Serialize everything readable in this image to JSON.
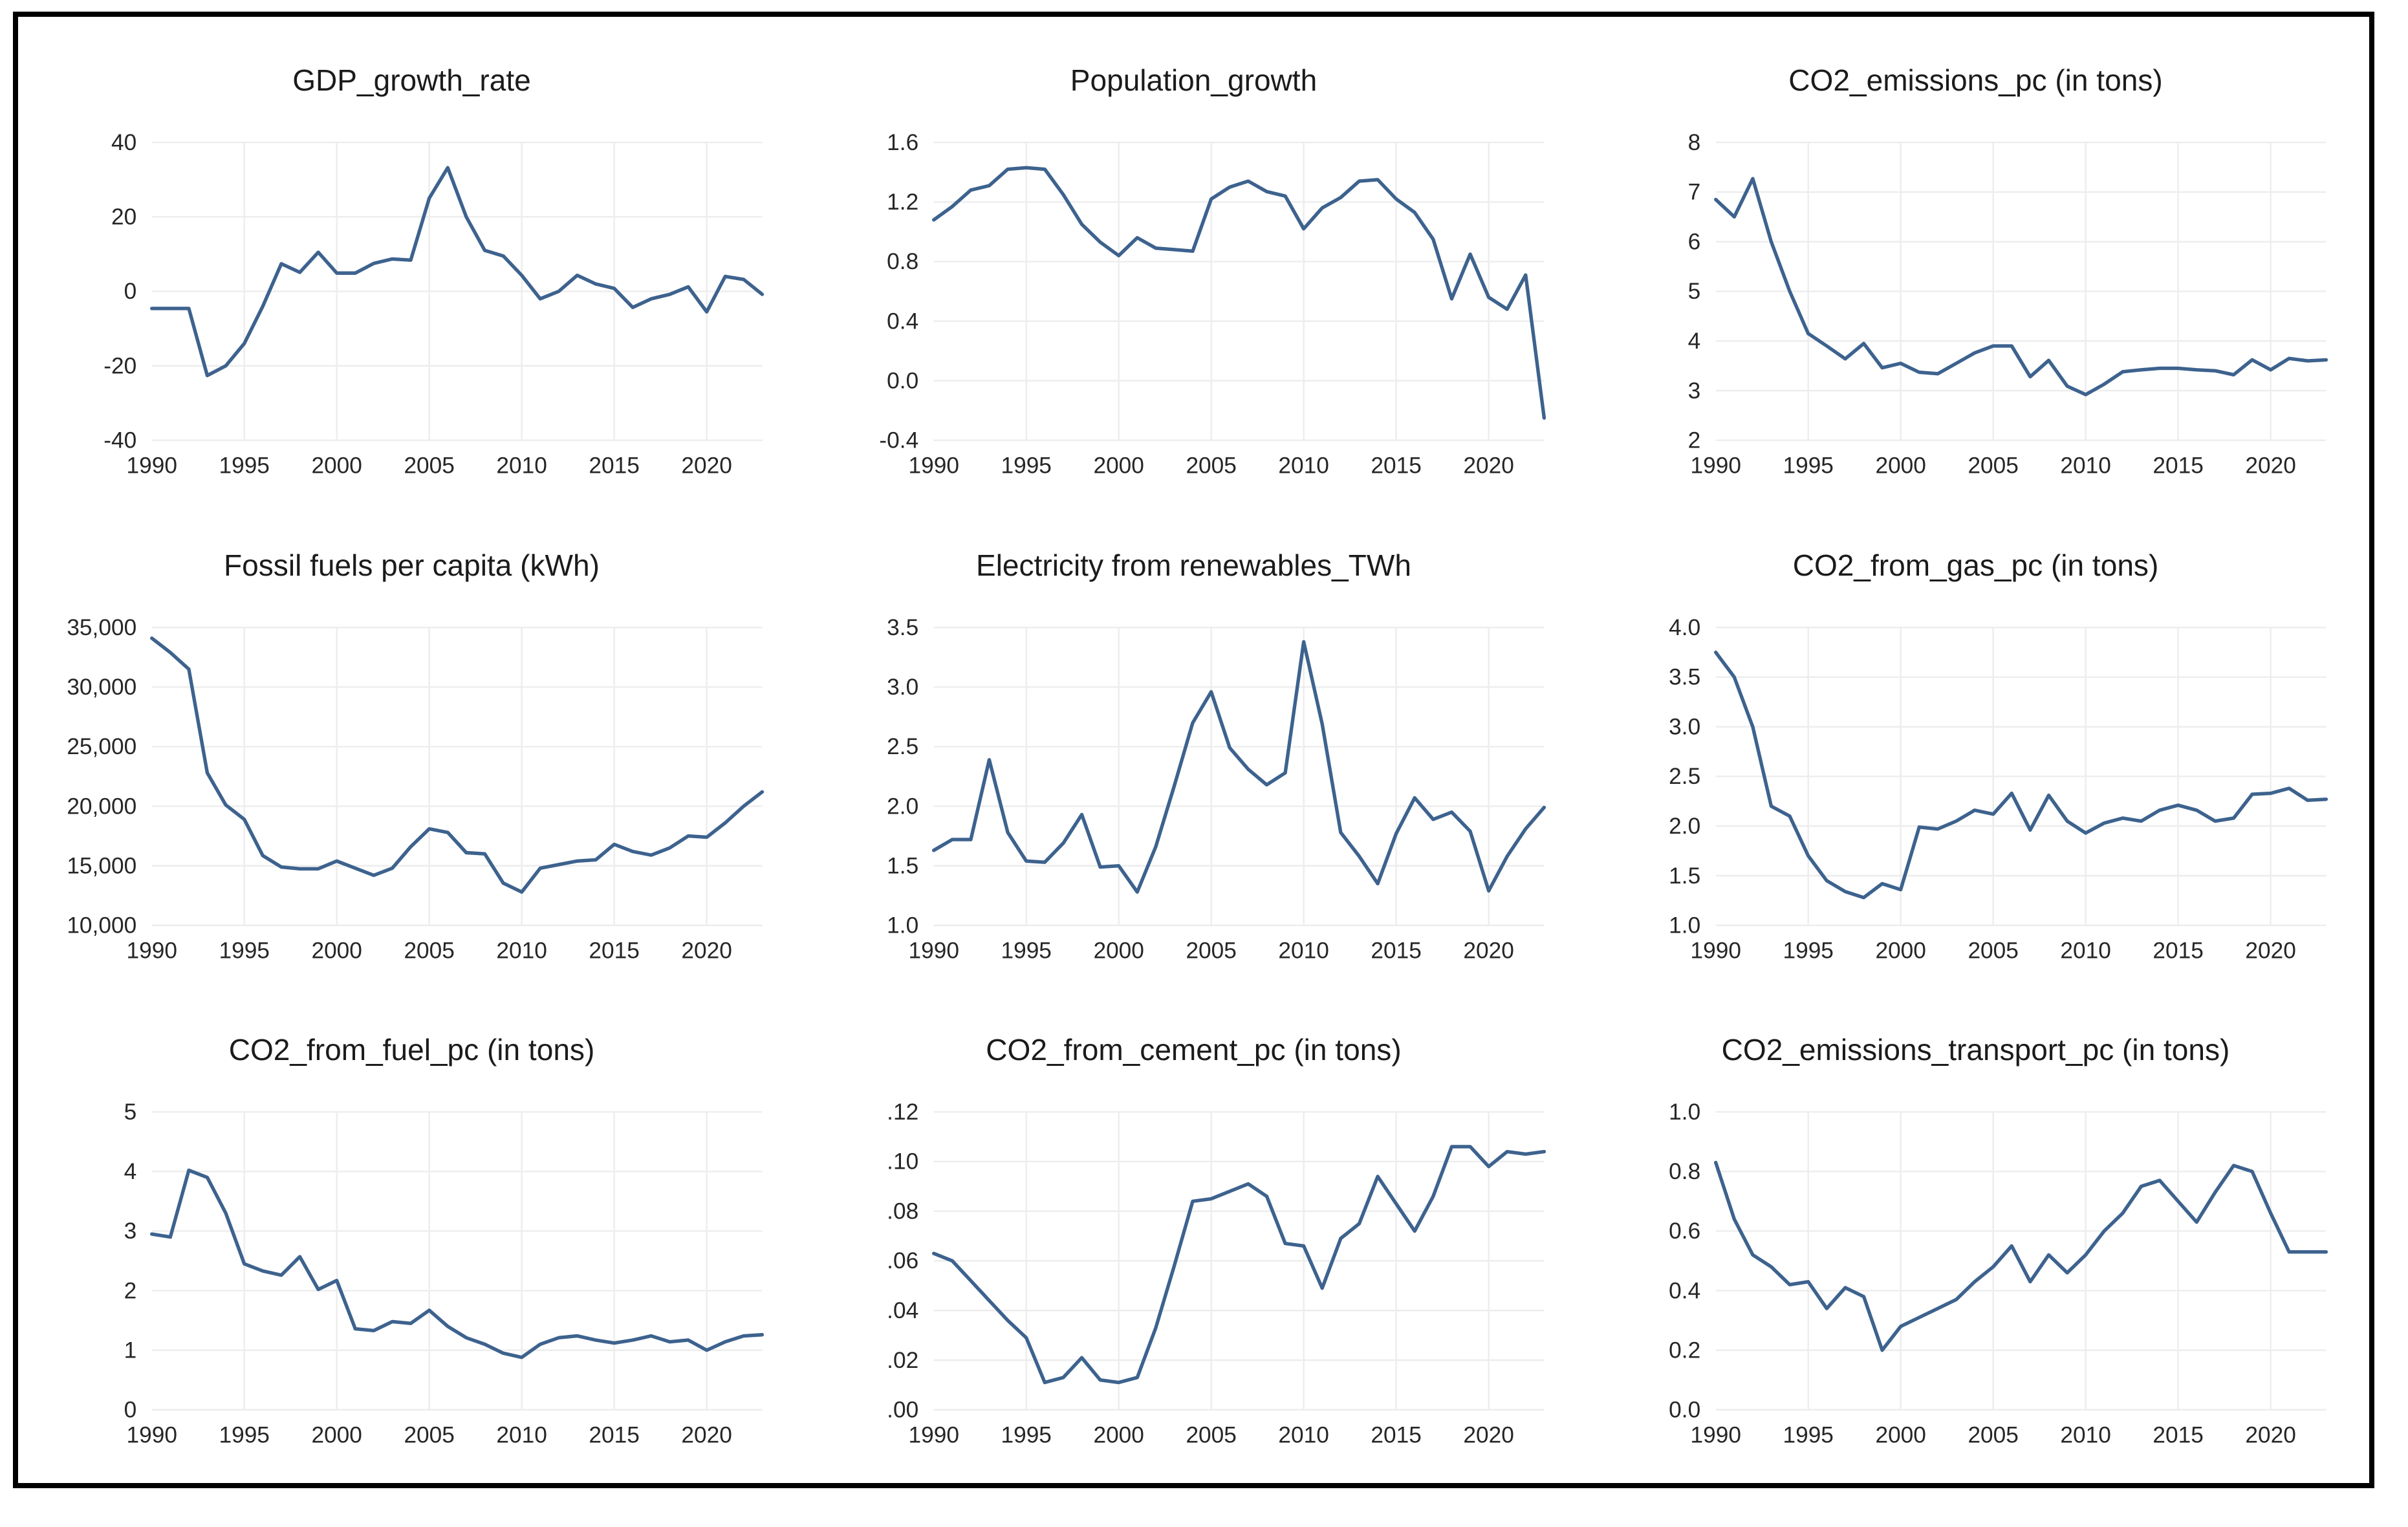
{
  "figure": {
    "background_color": "#ffffff",
    "border_color": "#000000",
    "series_color": "#3d628e",
    "grid_color": "#ededed",
    "layout": "3x3-panel-grid",
    "legend": "none"
  },
  "chart_data": {
    "type": "line",
    "x_years": [
      1990,
      1991,
      1992,
      1993,
      1994,
      1995,
      1996,
      1997,
      1998,
      1999,
      2000,
      2001,
      2002,
      2003,
      2004,
      2005,
      2006,
      2007,
      2008,
      2009,
      2010,
      2011,
      2012,
      2013,
      2014,
      2015,
      2016,
      2017,
      2018,
      2019,
      2020,
      2021,
      2022,
      2023
    ],
    "x_tick_years": [
      1990,
      1995,
      2000,
      2005,
      2010,
      2015,
      2020
    ],
    "x_tick_labels": [
      "1990",
      "1995",
      "2000",
      "2005",
      "2010",
      "2015",
      "2020"
    ],
    "grid": true,
    "panels": [
      {
        "title": "GDP_growth_rate",
        "ylim": [
          -40,
          40
        ],
        "y_tick_values": [
          -40,
          -20,
          0,
          20,
          40
        ],
        "y_tick_labels": [
          "-40",
          "-20",
          "0",
          "20",
          "40"
        ],
        "values": [
          -4.6,
          -4.6,
          -4.6,
          -22.6,
          -20,
          -14,
          -4,
          7.4,
          5.1,
          10.5,
          4.9,
          4.9,
          7.5,
          8.7,
          8.4,
          25,
          33.2,
          20,
          11,
          9.5,
          4.3,
          -2,
          0,
          4.3,
          2,
          0.8,
          -4.3,
          -2,
          -0.8,
          1.2,
          -5.5,
          4,
          3.2,
          -0.8
        ]
      },
      {
        "title": "Population_growth",
        "ylim": [
          -0.4,
          1.6
        ],
        "y_tick_values": [
          -0.4,
          0.0,
          0.4,
          0.8,
          1.2,
          1.6
        ],
        "y_tick_labels": [
          "-0.4",
          "0.0",
          "0.4",
          "0.8",
          "1.2",
          "1.6"
        ],
        "values": [
          1.08,
          1.17,
          1.28,
          1.31,
          1.42,
          1.43,
          1.42,
          1.25,
          1.05,
          0.93,
          0.84,
          0.96,
          0.89,
          0.88,
          0.87,
          1.22,
          1.3,
          1.34,
          1.27,
          1.24,
          1.02,
          1.16,
          1.23,
          1.34,
          1.35,
          1.22,
          1.13,
          0.95,
          0.55,
          0.85,
          0.56,
          0.48,
          0.71,
          -0.25
        ]
      },
      {
        "title": "CO2_emissions_pc (in tons)",
        "ylim": [
          2,
          8
        ],
        "y_tick_values": [
          2,
          3,
          4,
          5,
          6,
          7,
          8
        ],
        "y_tick_labels": [
          "2",
          "3",
          "4",
          "5",
          "6",
          "7",
          "8"
        ],
        "values": [
          6.85,
          6.5,
          7.27,
          6.0,
          5.0,
          4.15,
          3.9,
          3.64,
          3.95,
          3.46,
          3.55,
          3.37,
          3.34,
          3.55,
          3.76,
          3.9,
          3.9,
          3.28,
          3.61,
          3.09,
          2.92,
          3.13,
          3.38,
          3.42,
          3.45,
          3.45,
          3.42,
          3.4,
          3.32,
          3.62,
          3.42,
          3.65,
          3.6,
          3.62
        ]
      },
      {
        "title": "Fossil fuels per capita (kWh)",
        "ylim": [
          10000,
          35000
        ],
        "y_tick_values": [
          10000,
          15000,
          20000,
          25000,
          30000,
          35000
        ],
        "y_tick_labels": [
          "10,000",
          "15,000",
          "20,000",
          "25,000",
          "30,000",
          "35,000"
        ],
        "values": [
          34100,
          32900,
          31500,
          22800,
          20100,
          18900,
          15850,
          14900,
          14750,
          14750,
          15400,
          14800,
          14200,
          14800,
          16600,
          18100,
          17800,
          16100,
          16000,
          13550,
          12800,
          14800,
          15100,
          15400,
          15500,
          16800,
          16200,
          15900,
          16500,
          17500,
          17400,
          18600,
          20000,
          21200
        ]
      },
      {
        "title": "Electricity from renewables_TWh",
        "ylim": [
          1.0,
          3.5
        ],
        "y_tick_values": [
          1.0,
          1.5,
          2.0,
          2.5,
          3.0,
          3.5
        ],
        "y_tick_labels": [
          "1.0",
          "1.5",
          "2.0",
          "2.5",
          "3.0",
          "3.5"
        ],
        "values": [
          1.63,
          1.72,
          1.72,
          2.39,
          1.78,
          1.54,
          1.53,
          1.69,
          1.93,
          1.49,
          1.5,
          1.28,
          1.66,
          2.17,
          2.7,
          2.96,
          2.49,
          2.31,
          2.18,
          2.28,
          3.38,
          2.69,
          1.78,
          1.58,
          1.35,
          1.77,
          2.07,
          1.89,
          1.95,
          1.79,
          1.29,
          1.58,
          1.81,
          1.99
        ]
      },
      {
        "title": "CO2_from_gas_pc (in tons)",
        "ylim": [
          1.0,
          4.0
        ],
        "y_tick_values": [
          1.0,
          1.5,
          2.0,
          2.5,
          3.0,
          3.5,
          4.0
        ],
        "y_tick_labels": [
          "1.0",
          "1.5",
          "2.0",
          "2.5",
          "3.0",
          "3.5",
          "4.0"
        ],
        "values": [
          3.75,
          3.5,
          3.0,
          2.2,
          2.1,
          1.7,
          1.45,
          1.34,
          1.28,
          1.42,
          1.36,
          1.99,
          1.97,
          2.05,
          2.16,
          2.12,
          2.33,
          1.96,
          2.31,
          2.05,
          1.93,
          2.03,
          2.08,
          2.05,
          2.16,
          2.21,
          2.16,
          2.05,
          2.08,
          2.32,
          2.33,
          2.38,
          2.26,
          2.27
        ]
      },
      {
        "title": "CO2_from_fuel_pc (in tons)",
        "ylim": [
          0,
          5
        ],
        "y_tick_values": [
          0,
          1,
          2,
          3,
          4,
          5
        ],
        "y_tick_labels": [
          "0",
          "1",
          "2",
          "3",
          "4",
          "5"
        ],
        "values": [
          2.95,
          2.9,
          4.02,
          3.9,
          3.3,
          2.45,
          2.33,
          2.26,
          2.57,
          2.02,
          2.17,
          1.36,
          1.33,
          1.48,
          1.45,
          1.67,
          1.4,
          1.21,
          1.1,
          0.95,
          0.88,
          1.1,
          1.21,
          1.24,
          1.17,
          1.12,
          1.17,
          1.24,
          1.14,
          1.17,
          1.0,
          1.14,
          1.24,
          1.26
        ]
      },
      {
        "title": "CO2_from_cement_pc (in tons)",
        "ylim": [
          0,
          0.12
        ],
        "y_tick_values": [
          0,
          0.02,
          0.04,
          0.06,
          0.08,
          0.1,
          0.12
        ],
        "y_tick_labels": [
          ".00",
          ".02",
          ".04",
          ".06",
          ".08",
          ".10",
          ".12"
        ],
        "values": [
          0.063,
          0.06,
          0.052,
          0.044,
          0.036,
          0.029,
          0.011,
          0.013,
          0.021,
          0.012,
          0.011,
          0.013,
          0.033,
          0.058,
          0.084,
          0.085,
          0.088,
          0.091,
          0.086,
          0.067,
          0.066,
          0.049,
          0.069,
          0.075,
          0.094,
          0.083,
          0.072,
          0.086,
          0.106,
          0.106,
          0.098,
          0.104,
          0.103,
          0.104
        ]
      },
      {
        "title": "CO2_emissions_transport_pc (in tons)",
        "ylim": [
          0,
          1.0
        ],
        "y_tick_values": [
          0,
          0.2,
          0.4,
          0.6,
          0.8,
          1.0
        ],
        "y_tick_labels": [
          "0.0",
          "0.2",
          "0.4",
          "0.6",
          "0.8",
          "1.0"
        ],
        "values": [
          0.83,
          0.64,
          0.52,
          0.48,
          0.42,
          0.43,
          0.34,
          0.41,
          0.38,
          0.2,
          0.28,
          0.31,
          0.34,
          0.37,
          0.43,
          0.48,
          0.55,
          0.43,
          0.52,
          0.46,
          0.52,
          0.6,
          0.66,
          0.75,
          0.77,
          0.7,
          0.63,
          0.73,
          0.82,
          0.8,
          0.66,
          0.53,
          0.53,
          0.53
        ]
      }
    ]
  }
}
